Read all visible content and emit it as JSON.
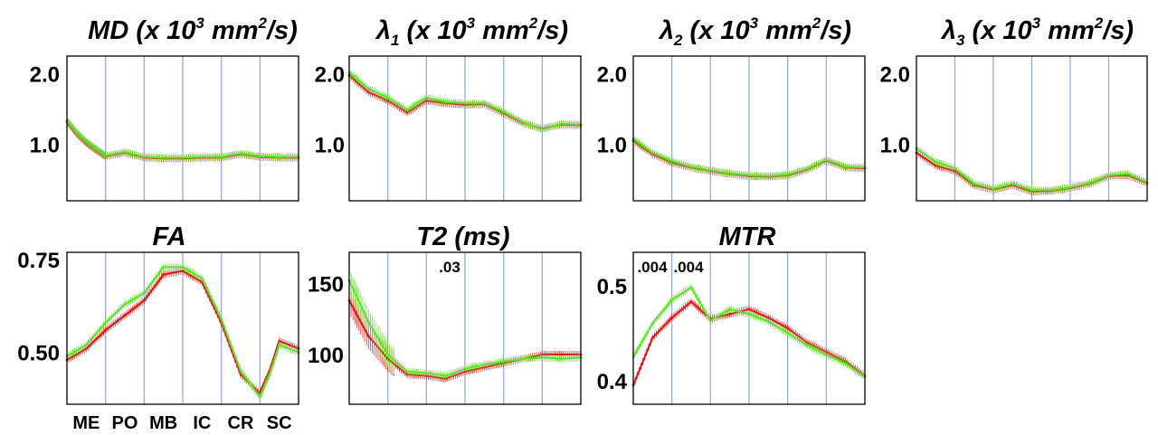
{
  "chart_data": [
    {
      "type": "line",
      "title": {
        "main": "MD (x 10",
        "sup1": "3",
        "mid": " mm",
        "sup2": "2",
        "end": "/s)"
      },
      "x": [
        0,
        0.25,
        0.5,
        0.75,
        1.0,
        1.5,
        2.0,
        2.5,
        3.0,
        3.5,
        4.0,
        4.5,
        5.0,
        5.5,
        6.0
      ],
      "ylim": [
        0.2,
        2.25
      ],
      "yticks": [
        "1.0",
        "2.0"
      ],
      "ytick_values": [
        1.0,
        2.0
      ],
      "series": [
        {
          "color": "#e01010",
          "values": [
            1.32,
            1.15,
            1.02,
            0.92,
            0.83,
            0.88,
            0.81,
            0.8,
            0.8,
            0.81,
            0.81,
            0.86,
            0.82,
            0.81,
            0.81
          ]
        },
        {
          "color": "#5fe02a",
          "values": [
            1.34,
            1.17,
            1.04,
            0.94,
            0.84,
            0.89,
            0.82,
            0.81,
            0.81,
            0.82,
            0.82,
            0.87,
            0.83,
            0.82,
            0.82
          ]
        }
      ]
    },
    {
      "type": "line",
      "title": {
        "lambda": "λ",
        "sub": "1",
        "main": " (x 10",
        "sup1": "3",
        "mid": " mm",
        "sup2": "2",
        "end": "/s)"
      },
      "x": [
        0,
        0.5,
        1.0,
        1.5,
        2.0,
        2.5,
        3.0,
        3.5,
        4.0,
        4.5,
        5.0,
        5.5,
        6.0
      ],
      "ylim": [
        0.2,
        2.25
      ],
      "yticks": [
        "1.0",
        "2.0"
      ],
      "ytick_values": [
        1.0,
        2.0
      ],
      "series": [
        {
          "color": "#e01010",
          "values": [
            1.98,
            1.74,
            1.62,
            1.45,
            1.62,
            1.58,
            1.56,
            1.57,
            1.44,
            1.3,
            1.22,
            1.28,
            1.27
          ]
        },
        {
          "color": "#5fe02a",
          "values": [
            2.02,
            1.79,
            1.66,
            1.49,
            1.66,
            1.6,
            1.58,
            1.58,
            1.46,
            1.31,
            1.21,
            1.29,
            1.28
          ]
        }
      ]
    },
    {
      "type": "line",
      "title": {
        "lambda": "λ",
        "sub": "2",
        "main": "  (x 10",
        "sup1": "3",
        "mid": " mm",
        "sup2": "2",
        "end": "/s)"
      },
      "x": [
        0,
        0.5,
        1.0,
        1.5,
        2.0,
        2.5,
        3.0,
        3.5,
        4.0,
        4.5,
        5.0,
        5.5,
        6.0
      ],
      "ylim": [
        0.2,
        2.25
      ],
      "yticks": [
        "1.0",
        "2.0"
      ],
      "ytick_values": [
        1.0,
        2.0
      ],
      "series": [
        {
          "color": "#e01010",
          "values": [
            1.05,
            0.86,
            0.74,
            0.67,
            0.62,
            0.58,
            0.55,
            0.54,
            0.56,
            0.64,
            0.77,
            0.67,
            0.66
          ]
        },
        {
          "color": "#5fe02a",
          "values": [
            1.08,
            0.88,
            0.76,
            0.68,
            0.63,
            0.59,
            0.56,
            0.55,
            0.57,
            0.65,
            0.78,
            0.68,
            0.67
          ]
        }
      ]
    },
    {
      "type": "line",
      "title": {
        "lambda": "λ",
        "sub": "3",
        "main": "  (x 10",
        "sup1": "3",
        "mid": " mm",
        "sup2": "2",
        "end": "/s)"
      },
      "x": [
        0,
        0.5,
        1.0,
        1.5,
        2.0,
        2.5,
        3.0,
        3.5,
        4.0,
        4.5,
        5.0,
        5.5,
        6.0
      ],
      "ylim": [
        0.2,
        2.25
      ],
      "yticks": [
        "1.0",
        "2.0"
      ],
      "ytick_values": [
        1.0,
        2.0
      ],
      "series": [
        {
          "color": "#e01010",
          "values": [
            0.88,
            0.7,
            0.62,
            0.42,
            0.36,
            0.42,
            0.33,
            0.34,
            0.38,
            0.44,
            0.55,
            0.56,
            0.45
          ]
        },
        {
          "color": "#5fe02a",
          "values": [
            0.94,
            0.75,
            0.66,
            0.44,
            0.37,
            0.44,
            0.35,
            0.35,
            0.39,
            0.45,
            0.56,
            0.58,
            0.46
          ]
        }
      ]
    },
    {
      "type": "line",
      "title": {
        "main": "FA"
      },
      "x": [
        0,
        0.5,
        1.0,
        1.5,
        2.0,
        2.5,
        3.0,
        3.5,
        4.0,
        4.5,
        5.0,
        5.25,
        5.5,
        6.0
      ],
      "ylim": [
        0.36,
        0.77
      ],
      "yticks": [
        "0.50",
        "0.75"
      ],
      "ytick_values": [
        0.5,
        0.75
      ],
      "xticks": [
        "ME",
        "PO",
        "MB",
        "IC",
        "CR",
        "SC"
      ],
      "series": [
        {
          "color": "#e01010",
          "values": [
            0.48,
            0.51,
            0.56,
            0.6,
            0.64,
            0.71,
            0.72,
            0.69,
            0.58,
            0.44,
            0.39,
            0.45,
            0.53,
            0.51
          ]
        },
        {
          "color": "#5fe02a",
          "values": [
            0.49,
            0.52,
            0.58,
            0.63,
            0.66,
            0.73,
            0.73,
            0.7,
            0.59,
            0.45,
            0.38,
            0.44,
            0.52,
            0.5
          ]
        }
      ]
    },
    {
      "type": "line",
      "title": {
        "main": "T2 (ms)"
      },
      "x": [
        0,
        0.5,
        1.0,
        1.5,
        2.0,
        2.5,
        3.0,
        3.5,
        4.0,
        4.5,
        5.0,
        5.5,
        6.0
      ],
      "ylim": [
        65,
        172
      ],
      "yticks": [
        "100",
        "150"
      ],
      "ytick_values": [
        100,
        150
      ],
      "annotations": [
        ".03"
      ],
      "series": [
        {
          "color": "#e01010",
          "values": [
            138,
            113,
            97,
            86,
            85,
            83,
            88,
            91,
            94,
            97,
            100,
            100,
            100
          ]
        },
        {
          "color": "#5fe02a",
          "values": [
            152,
            123,
            100,
            88,
            87,
            85,
            90,
            93,
            95,
            97,
            98,
            97,
            98
          ]
        }
      ]
    },
    {
      "type": "line",
      "title": {
        "main": "MTR"
      },
      "x": [
        0,
        0.5,
        1.0,
        1.5,
        2.0,
        2.5,
        3.0,
        3.5,
        4.0,
        4.5,
        5.0,
        5.5,
        6.0
      ],
      "ylim": [
        0.375,
        0.535
      ],
      "yticks": [
        "0.5",
        "0.4"
      ],
      "ytick_values": [
        0.5,
        0.4
      ],
      "annotations": [
        ".004",
        ".004"
      ],
      "series": [
        {
          "color": "#e01010",
          "values": [
            0.395,
            0.445,
            0.466,
            0.483,
            0.465,
            0.47,
            0.475,
            0.466,
            0.455,
            0.44,
            0.43,
            0.42,
            0.405
          ]
        },
        {
          "color": "#5fe02a",
          "values": [
            0.425,
            0.46,
            0.485,
            0.498,
            0.463,
            0.475,
            0.47,
            0.462,
            0.45,
            0.437,
            0.427,
            0.418,
            0.404
          ]
        }
      ]
    }
  ]
}
